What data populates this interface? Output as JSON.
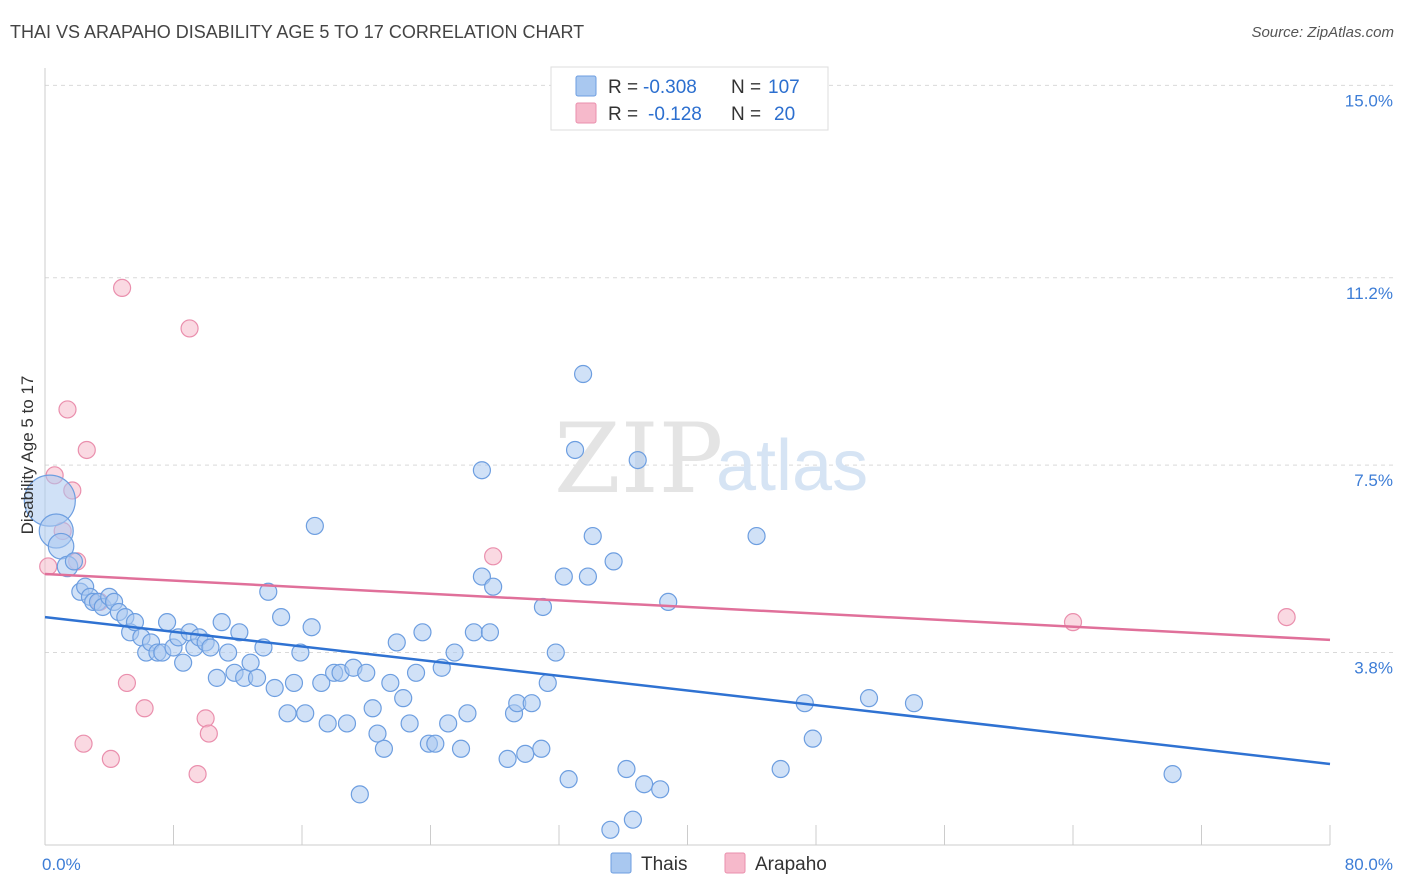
{
  "title": "THAI VS ARAPAHO DISABILITY AGE 5 TO 17 CORRELATION CHART",
  "source": "Source: ZipAtlas.com",
  "watermark": {
    "zip": "ZIP",
    "atlas": "atlas"
  },
  "colors": {
    "thais_fill": "#a9c8f0",
    "thais_stroke": "#6d9ee0",
    "thais_line": "#2f72d2",
    "arapaho_fill": "#f6b9cb",
    "arapaho_stroke": "#ea8fad",
    "arapaho_line": "#e0709a",
    "tick_text": "#3d7dd6",
    "grid": "#d9d9d9"
  },
  "legend": {
    "rows": [
      {
        "r_label": "R =",
        "r_value": "-0.308",
        "n_label": "N =",
        "n_value": "107"
      },
      {
        "r_label": "R =",
        "r_value": "-0.128",
        "n_label": "N =",
        "n_value": "20"
      }
    ]
  },
  "chart_data": {
    "type": "scatter",
    "title": "THAI VS ARAPAHO DISABILITY AGE 5 TO 17 CORRELATION CHART",
    "xlabel": "",
    "ylabel": "Disability Age 5 to 17",
    "xlim": [
      0,
      80
    ],
    "ylim": [
      0,
      15.5
    ],
    "x_ticks": [
      "0.0%",
      "80.0%"
    ],
    "y_ticks": [
      {
        "value": 3.8,
        "label": "3.8%"
      },
      {
        "value": 7.5,
        "label": "7.5%"
      },
      {
        "value": 11.2,
        "label": "11.2%"
      },
      {
        "value": 15.0,
        "label": "15.0%"
      }
    ],
    "grid": true,
    "legend_position": "top-center",
    "series": [
      {
        "name": "Thais",
        "trend": {
          "x": [
            0,
            80
          ],
          "y": [
            4.5,
            1.6
          ]
        },
        "points": [
          {
            "x": 0.3,
            "y": 6.8,
            "s": 3
          },
          {
            "x": 0.7,
            "y": 6.2,
            "s": 2
          },
          {
            "x": 1.0,
            "y": 5.9,
            "s": 1.5
          },
          {
            "x": 1.4,
            "y": 5.5,
            "s": 1.2
          },
          {
            "x": 1.8,
            "y": 5.6
          },
          {
            "x": 2.2,
            "y": 5.0
          },
          {
            "x": 2.5,
            "y": 5.1
          },
          {
            "x": 2.8,
            "y": 4.9
          },
          {
            "x": 3.0,
            "y": 4.8
          },
          {
            "x": 3.3,
            "y": 4.8
          },
          {
            "x": 3.6,
            "y": 4.7
          },
          {
            "x": 4.0,
            "y": 4.9
          },
          {
            "x": 4.3,
            "y": 4.8
          },
          {
            "x": 4.6,
            "y": 4.6
          },
          {
            "x": 5.0,
            "y": 4.5
          },
          {
            "x": 5.3,
            "y": 4.2
          },
          {
            "x": 5.6,
            "y": 4.4
          },
          {
            "x": 6.0,
            "y": 4.1
          },
          {
            "x": 6.3,
            "y": 3.8
          },
          {
            "x": 6.6,
            "y": 4.0
          },
          {
            "x": 7.0,
            "y": 3.8
          },
          {
            "x": 7.3,
            "y": 3.8
          },
          {
            "x": 7.6,
            "y": 4.4
          },
          {
            "x": 8.0,
            "y": 3.9
          },
          {
            "x": 8.3,
            "y": 4.1
          },
          {
            "x": 8.6,
            "y": 3.6
          },
          {
            "x": 9.0,
            "y": 4.2
          },
          {
            "x": 9.3,
            "y": 3.9
          },
          {
            "x": 9.6,
            "y": 4.1
          },
          {
            "x": 10.0,
            "y": 4.0
          },
          {
            "x": 10.3,
            "y": 3.9
          },
          {
            "x": 10.7,
            "y": 3.3
          },
          {
            "x": 11.0,
            "y": 4.4
          },
          {
            "x": 11.4,
            "y": 3.8
          },
          {
            "x": 11.8,
            "y": 3.4
          },
          {
            "x": 12.1,
            "y": 4.2
          },
          {
            "x": 12.4,
            "y": 3.3
          },
          {
            "x": 12.8,
            "y": 3.6
          },
          {
            "x": 13.2,
            "y": 3.3
          },
          {
            "x": 13.6,
            "y": 3.9
          },
          {
            "x": 13.9,
            "y": 5.0
          },
          {
            "x": 14.3,
            "y": 3.1
          },
          {
            "x": 14.7,
            "y": 4.5
          },
          {
            "x": 15.1,
            "y": 2.6
          },
          {
            "x": 15.5,
            "y": 3.2
          },
          {
            "x": 15.9,
            "y": 3.8
          },
          {
            "x": 16.2,
            "y": 2.6
          },
          {
            "x": 16.6,
            "y": 4.3
          },
          {
            "x": 16.8,
            "y": 6.3
          },
          {
            "x": 17.2,
            "y": 3.2
          },
          {
            "x": 17.6,
            "y": 2.4
          },
          {
            "x": 18.0,
            "y": 3.4
          },
          {
            "x": 18.4,
            "y": 3.4
          },
          {
            "x": 18.8,
            "y": 2.4
          },
          {
            "x": 19.2,
            "y": 3.5
          },
          {
            "x": 19.6,
            "y": 1.0
          },
          {
            "x": 20.0,
            "y": 3.4
          },
          {
            "x": 20.4,
            "y": 2.7
          },
          {
            "x": 20.7,
            "y": 2.2
          },
          {
            "x": 21.1,
            "y": 1.9
          },
          {
            "x": 21.5,
            "y": 3.2
          },
          {
            "x": 21.9,
            "y": 4.0
          },
          {
            "x": 22.3,
            "y": 2.9
          },
          {
            "x": 22.7,
            "y": 2.4
          },
          {
            "x": 23.1,
            "y": 3.4
          },
          {
            "x": 23.5,
            "y": 4.2
          },
          {
            "x": 23.9,
            "y": 2.0
          },
          {
            "x": 24.3,
            "y": 2.0
          },
          {
            "x": 24.7,
            "y": 3.5
          },
          {
            "x": 25.1,
            "y": 2.4
          },
          {
            "x": 25.5,
            "y": 3.8
          },
          {
            "x": 25.9,
            "y": 1.9
          },
          {
            "x": 26.3,
            "y": 2.6
          },
          {
            "x": 26.7,
            "y": 4.2
          },
          {
            "x": 27.2,
            "y": 7.4
          },
          {
            "x": 27.2,
            "y": 5.3
          },
          {
            "x": 27.7,
            "y": 4.2
          },
          {
            "x": 27.9,
            "y": 5.1
          },
          {
            "x": 28.8,
            "y": 1.7
          },
          {
            "x": 29.2,
            "y": 2.6
          },
          {
            "x": 29.4,
            "y": 2.8
          },
          {
            "x": 29.9,
            "y": 1.8
          },
          {
            "x": 30.3,
            "y": 2.8
          },
          {
            "x": 30.9,
            "y": 1.9
          },
          {
            "x": 31.0,
            "y": 4.7
          },
          {
            "x": 31.3,
            "y": 3.2
          },
          {
            "x": 31.8,
            "y": 3.8
          },
          {
            "x": 32.3,
            "y": 5.3
          },
          {
            "x": 32.6,
            "y": 1.3
          },
          {
            "x": 33.0,
            "y": 7.8
          },
          {
            "x": 33.5,
            "y": 9.3
          },
          {
            "x": 33.8,
            "y": 5.3
          },
          {
            "x": 34.1,
            "y": 6.1
          },
          {
            "x": 35.2,
            "y": 0.3
          },
          {
            "x": 35.4,
            "y": 5.6
          },
          {
            "x": 36.2,
            "y": 1.5
          },
          {
            "x": 36.6,
            "y": 0.5
          },
          {
            "x": 36.9,
            "y": 7.6
          },
          {
            "x": 37.3,
            "y": 1.2
          },
          {
            "x": 38.3,
            "y": 1.1
          },
          {
            "x": 38.8,
            "y": 4.8
          },
          {
            "x": 44.3,
            "y": 6.1
          },
          {
            "x": 45.8,
            "y": 1.5
          },
          {
            "x": 47.3,
            "y": 2.8
          },
          {
            "x": 47.8,
            "y": 2.1
          },
          {
            "x": 51.3,
            "y": 2.9
          },
          {
            "x": 54.1,
            "y": 2.8
          },
          {
            "x": 70.2,
            "y": 1.4
          }
        ]
      },
      {
        "name": "Arapaho",
        "trend": {
          "x": [
            0,
            80
          ],
          "y": [
            5.35,
            4.05
          ]
        },
        "points": [
          {
            "x": 0.2,
            "y": 5.5
          },
          {
            "x": 0.6,
            "y": 7.3
          },
          {
            "x": 1.1,
            "y": 6.2
          },
          {
            "x": 1.4,
            "y": 8.6
          },
          {
            "x": 1.7,
            "y": 7.0
          },
          {
            "x": 2.0,
            "y": 5.6
          },
          {
            "x": 2.4,
            "y": 2.0
          },
          {
            "x": 2.6,
            "y": 7.8
          },
          {
            "x": 3.4,
            "y": 4.8
          },
          {
            "x": 4.1,
            "y": 1.7
          },
          {
            "x": 4.8,
            "y": 11.0
          },
          {
            "x": 5.1,
            "y": 3.2
          },
          {
            "x": 6.2,
            "y": 2.7
          },
          {
            "x": 9.0,
            "y": 10.2
          },
          {
            "x": 9.5,
            "y": 1.4
          },
          {
            "x": 10.0,
            "y": 2.5
          },
          {
            "x": 10.2,
            "y": 2.2
          },
          {
            "x": 27.9,
            "y": 5.7
          },
          {
            "x": 64.0,
            "y": 4.4
          },
          {
            "x": 77.3,
            "y": 4.5
          }
        ]
      }
    ]
  }
}
